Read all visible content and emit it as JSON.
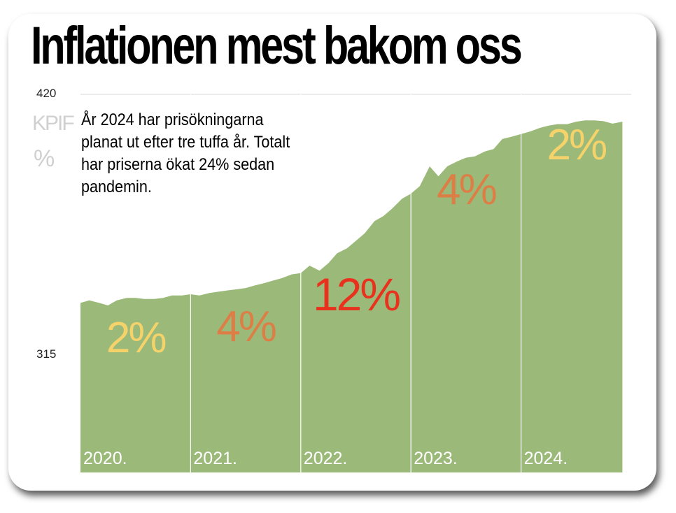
{
  "title": "Inflationen mest bakom oss",
  "unit_line1": "KPIF",
  "unit_line2": "%",
  "note": "År 2024 har prisökningarna planat ut efter tre tuffa år. Totalt har priserna ökat 24% sedan pandemin.",
  "colors": {
    "area": "#9bba7a",
    "yellow": "#f6d26a",
    "orange": "#dc7f46",
    "red": "#e8321e",
    "year_label": "#ffffff"
  },
  "chart_data": {
    "type": "area",
    "ylim": [
      315,
      420
    ],
    "yticks": [
      420,
      315
    ],
    "years": [
      "2020.",
      "2021.",
      "2022.",
      "2023.",
      "2024."
    ],
    "year_rates": [
      "2%",
      "4%",
      "12%",
      "4%",
      "2%"
    ],
    "rate_colors": [
      "yellow",
      "orange",
      "red",
      "orange",
      "yellow"
    ],
    "x": [
      2020.0,
      2020.08,
      2020.17,
      2020.25,
      2020.33,
      2020.42,
      2020.5,
      2020.58,
      2020.67,
      2020.75,
      2020.83,
      2020.92,
      2021.0,
      2021.08,
      2021.17,
      2021.25,
      2021.33,
      2021.42,
      2021.5,
      2021.58,
      2021.67,
      2021.75,
      2021.83,
      2021.92,
      2022.0,
      2022.08,
      2022.17,
      2022.25,
      2022.33,
      2022.42,
      2022.5,
      2022.58,
      2022.67,
      2022.75,
      2022.83,
      2022.92,
      2023.0,
      2023.08,
      2023.17,
      2023.25,
      2023.33,
      2023.42,
      2023.5,
      2023.58,
      2023.67,
      2023.75,
      2023.83,
      2023.92,
      2024.0,
      2024.08,
      2024.17,
      2024.25,
      2024.33,
      2024.42,
      2024.5,
      2024.58,
      2024.67,
      2024.75,
      2024.83,
      2024.92
    ],
    "values": [
      336,
      337,
      336,
      335,
      337,
      338,
      338,
      337.6,
      337.6,
      338,
      339,
      339,
      339.5,
      339,
      340,
      340.5,
      341,
      341.5,
      342,
      343,
      344,
      345,
      346,
      347.5,
      348,
      351,
      349,
      352,
      356,
      358,
      361,
      364,
      369,
      371,
      374,
      378,
      380,
      383,
      391,
      387,
      391,
      393,
      394.5,
      395,
      397,
      398,
      402,
      403,
      404,
      405,
      406.5,
      407.4,
      408,
      408,
      409,
      409.5,
      409.5,
      409.2,
      408.2,
      409
    ]
  }
}
